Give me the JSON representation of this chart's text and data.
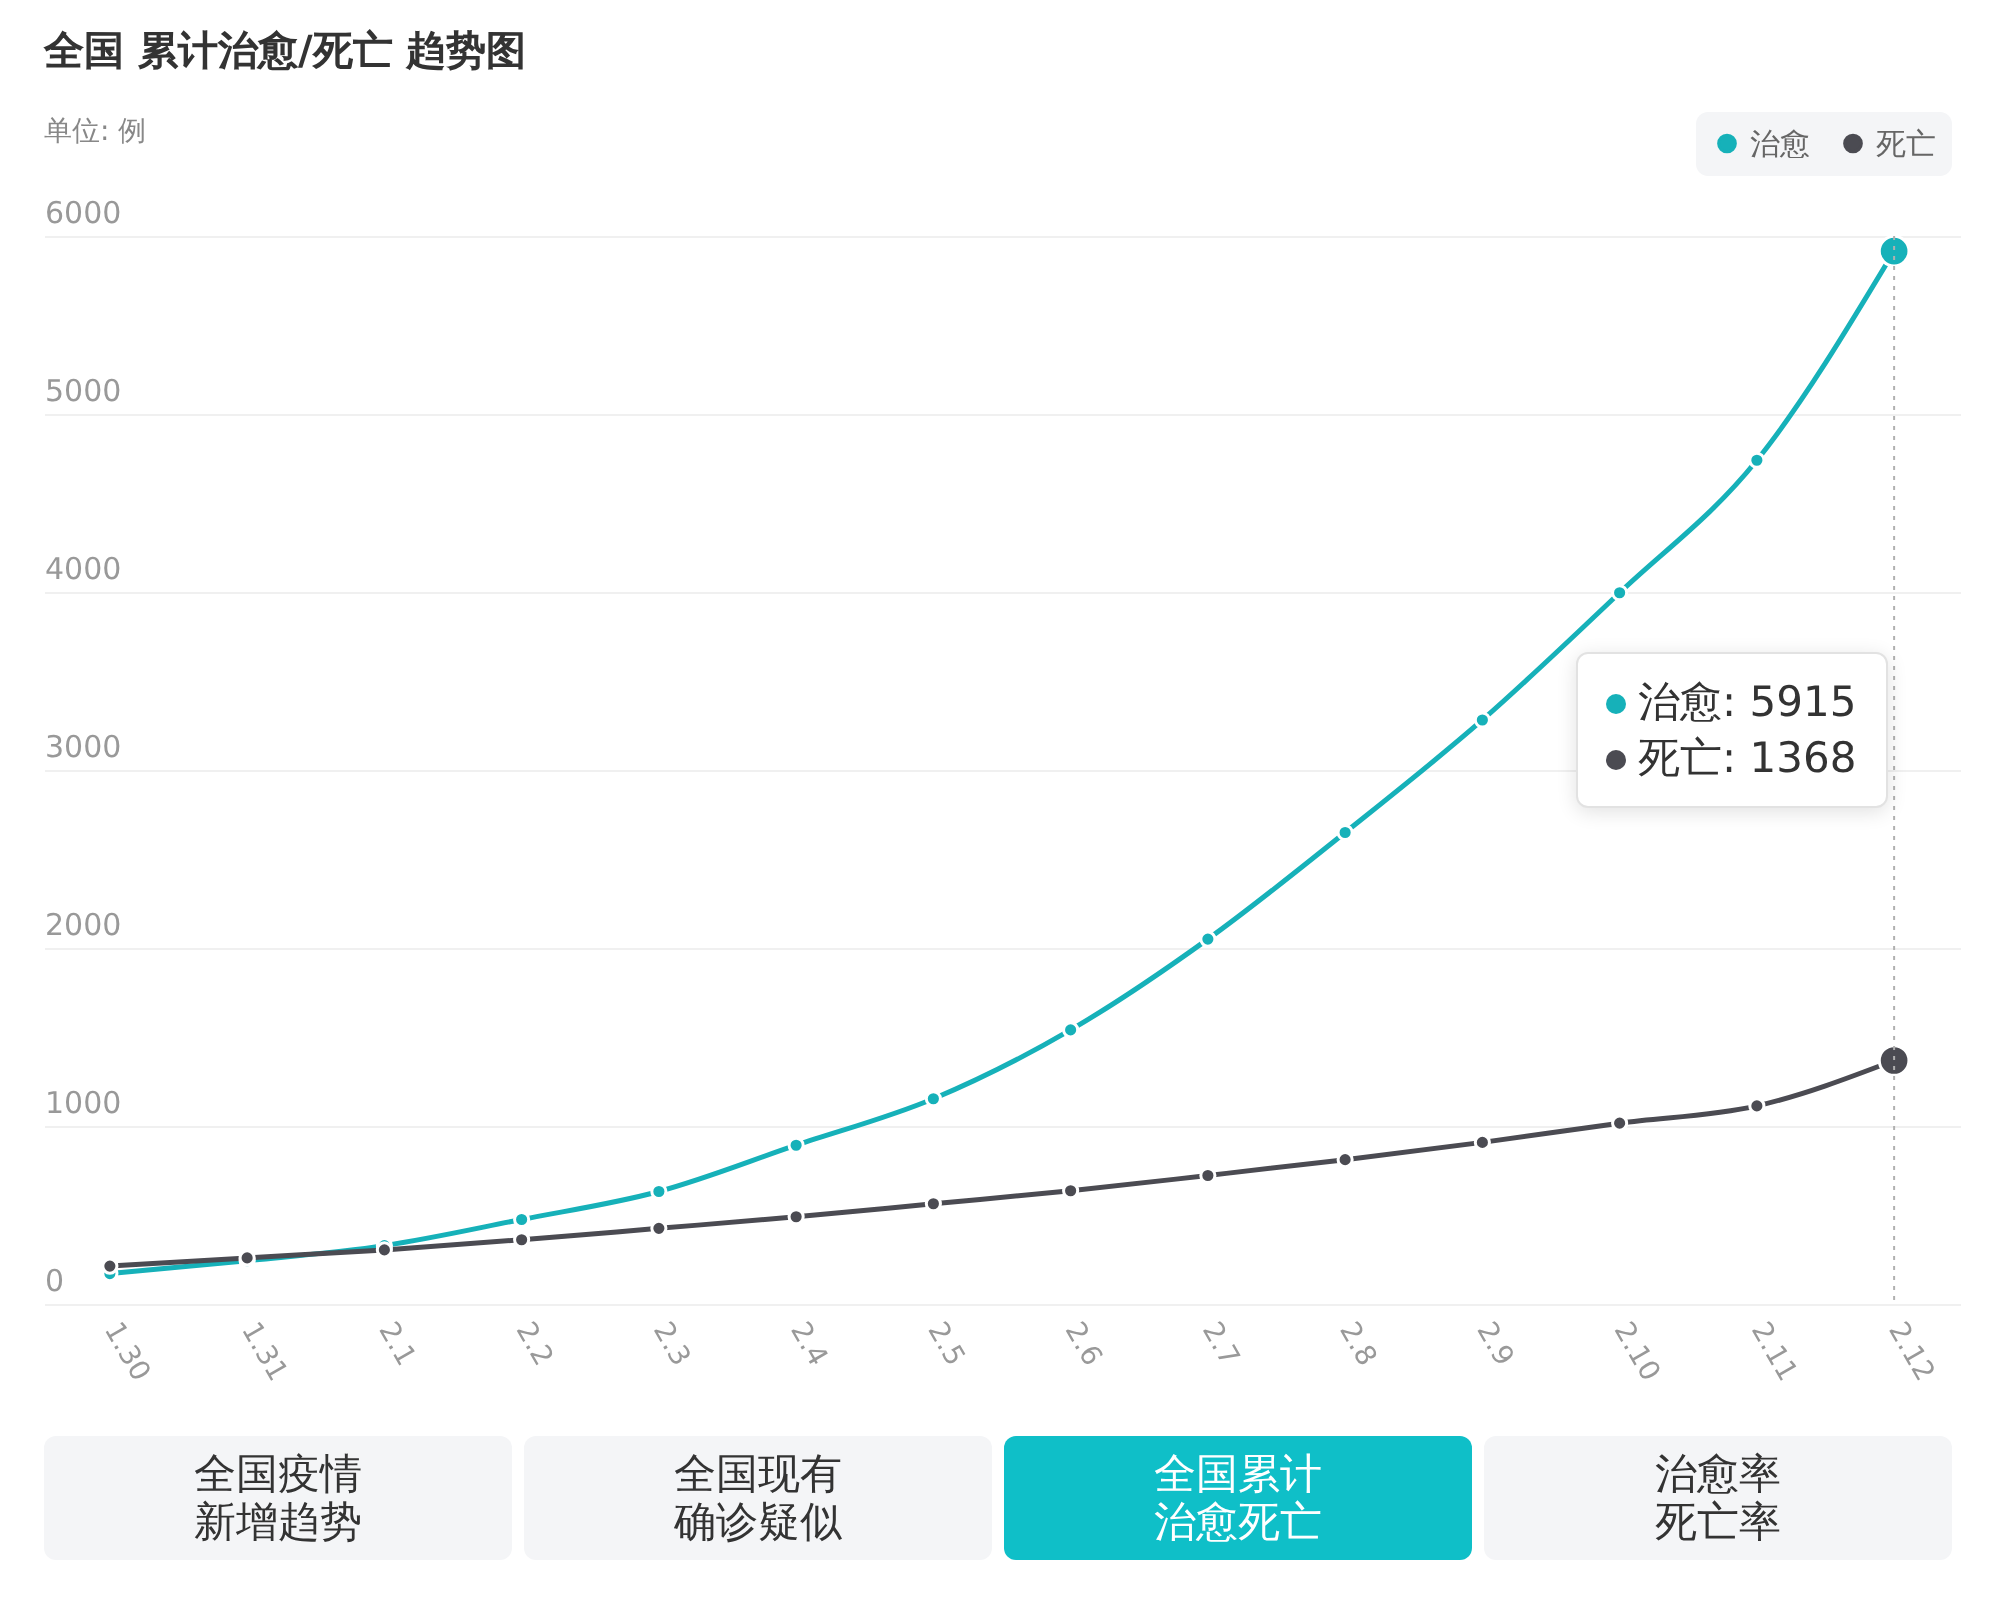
{
  "chart_data": {
    "type": "line",
    "title": "全国 累计治愈/死亡 趋势图",
    "subtitle": "单位: 例",
    "categories": [
      "1.30",
      "1.31",
      "2.1",
      "2.2",
      "2.3",
      "2.4",
      "2.5",
      "2.6",
      "2.7",
      "2.8",
      "2.9",
      "2.10",
      "2.11",
      "2.12"
    ],
    "series": [
      {
        "name": "治愈",
        "color": "#16b1b9",
        "values": [
          171,
          243,
          328,
          475,
          632,
          892,
          1153,
          1540,
          2050,
          2649,
          3281,
          3996,
          4740,
          5915
        ]
      },
      {
        "name": "死亡",
        "color": "#4b4b52",
        "values": [
          213,
          259,
          304,
          361,
          425,
          490,
          563,
          636,
          722,
          811,
          908,
          1016,
          1113,
          1368
        ]
      }
    ],
    "ylim": [
      0,
      6000
    ],
    "yticks": [
      0,
      1000,
      2000,
      3000,
      4000,
      5000,
      6000
    ],
    "grid": "y",
    "legend": "top right",
    "marker": "circle",
    "line_style": "solid",
    "ref_lines": [
      {
        "axis": "x",
        "value": "2.12",
        "color": "#b0b0b0",
        "line_style": "dotted"
      }
    ],
    "annotations": [
      "治愈: 5915",
      "死亡: 1368",
      "全国疫情新增趋势",
      "全国现有确诊疑似",
      "全国累计治愈死亡",
      "治愈率死亡率"
    ]
  }
}
